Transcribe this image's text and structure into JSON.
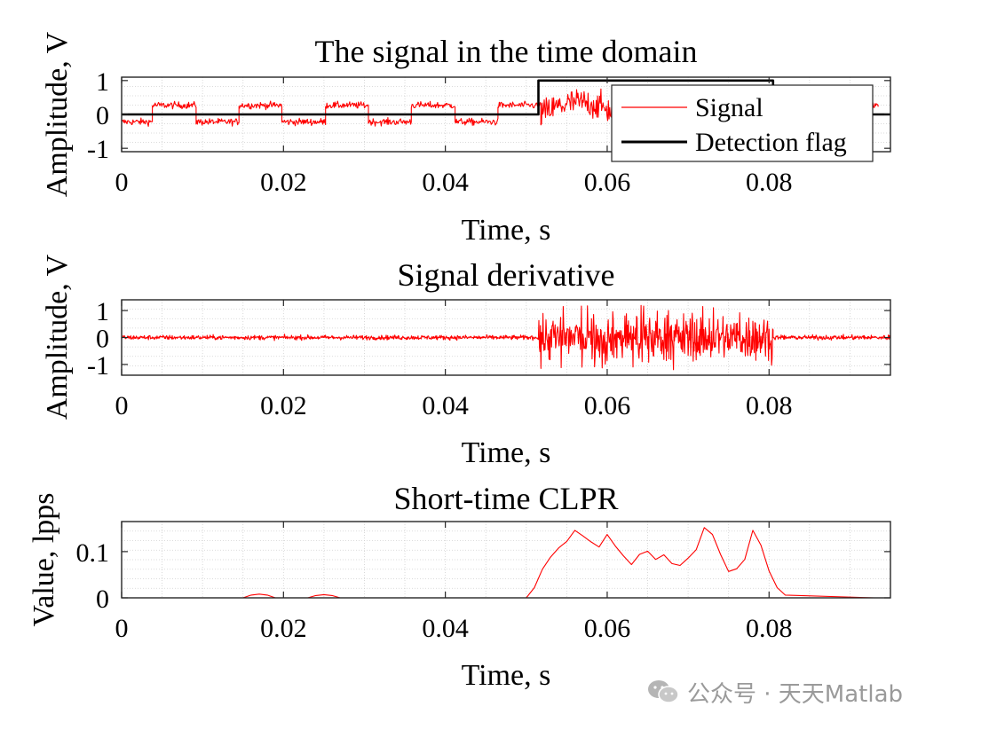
{
  "watermark": {
    "text": "公众号 · 天天Matlab",
    "icon": "wechat-icon"
  },
  "chart_data": [
    {
      "type": "line",
      "title": "The signal in the time domain",
      "xlabel": "Time, s",
      "ylabel": "Amplitude, V",
      "xlim": [
        0,
        0.095
      ],
      "ylim": [
        -1.1,
        1.1
      ],
      "xticks": [
        0,
        0.02,
        0.04,
        0.06,
        0.08
      ],
      "xtick_labels": [
        "0",
        "0.02",
        "0.04",
        "0.06",
        "0.08"
      ],
      "yticks": [
        -1,
        0,
        1
      ],
      "ytick_labels": [
        "-1",
        "0",
        "1"
      ],
      "grid": true,
      "legend": "top-right",
      "series": [
        {
          "name": "Signal",
          "color": "#ff0000",
          "kind": "noisy-square",
          "segments": [
            {
              "x0": 0.0,
              "x1": 0.0038,
              "level": -0.22
            },
            {
              "x0": 0.0038,
              "x1": 0.0092,
              "level": 0.27
            },
            {
              "x0": 0.0092,
              "x1": 0.0145,
              "level": -0.22
            },
            {
              "x0": 0.0145,
              "x1": 0.0198,
              "level": 0.27
            },
            {
              "x0": 0.0198,
              "x1": 0.0252,
              "level": -0.22
            },
            {
              "x0": 0.0252,
              "x1": 0.0305,
              "level": 0.27
            },
            {
              "x0": 0.0305,
              "x1": 0.0358,
              "level": -0.22
            },
            {
              "x0": 0.0358,
              "x1": 0.0412,
              "level": 0.27
            },
            {
              "x0": 0.0412,
              "x1": 0.0465,
              "level": -0.22
            },
            {
              "x0": 0.0465,
              "x1": 0.0518,
              "level": 0.27
            },
            {
              "x0": 0.0518,
              "x1": 0.0805,
              "level": 0.0,
              "noise": 0.6
            },
            {
              "x0": 0.0805,
              "x1": 0.0935,
              "level": 0.27
            }
          ]
        },
        {
          "name": "Detection flag",
          "color": "#000000",
          "x": [
            0,
            0.0515,
            0.0515,
            0.0805,
            0.0805,
            0.095
          ],
          "y": [
            0,
            0,
            1,
            1,
            0,
            0
          ]
        }
      ]
    },
    {
      "type": "line",
      "title": "Signal derivative",
      "xlabel": "Time, s",
      "ylabel": "Amplitude, V",
      "xlim": [
        0,
        0.095
      ],
      "ylim": [
        -1.4,
        1.4
      ],
      "xticks": [
        0,
        0.02,
        0.04,
        0.06,
        0.08
      ],
      "xtick_labels": [
        "0",
        "0.02",
        "0.04",
        "0.06",
        "0.08"
      ],
      "yticks": [
        -1,
        0,
        1
      ],
      "ytick_labels": [
        "-1",
        "0",
        "1"
      ],
      "grid": true,
      "series": [
        {
          "color": "#ff0000",
          "kind": "noise-bursts",
          "segments": [
            {
              "x0": 0.0,
              "x1": 0.0515,
              "amp": 0.12
            },
            {
              "x0": 0.0515,
              "x1": 0.0805,
              "amp": 1.2
            },
            {
              "x0": 0.0805,
              "x1": 0.095,
              "amp": 0.12
            }
          ]
        }
      ]
    },
    {
      "type": "line",
      "title": "Short-time CLPR",
      "xlabel": "Time, s",
      "ylabel": "Value, lpps",
      "xlim": [
        0,
        0.095
      ],
      "ylim": [
        0,
        0.165
      ],
      "xticks": [
        0,
        0.02,
        0.04,
        0.06,
        0.08
      ],
      "xtick_labels": [
        "0",
        "0.02",
        "0.04",
        "0.06",
        "0.08"
      ],
      "yticks": [
        0,
        0.1
      ],
      "ytick_labels": [
        "0",
        "0.1"
      ],
      "grid": true,
      "series": [
        {
          "color": "#ff0000",
          "x": [
            0.001,
            0.015,
            0.016,
            0.017,
            0.018,
            0.019,
            0.023,
            0.024,
            0.025,
            0.026,
            0.027,
            0.05,
            0.051,
            0.052,
            0.053,
            0.054,
            0.055,
            0.056,
            0.057,
            0.058,
            0.059,
            0.06,
            0.061,
            0.062,
            0.063,
            0.064,
            0.065,
            0.066,
            0.067,
            0.068,
            0.069,
            0.07,
            0.071,
            0.072,
            0.073,
            0.074,
            0.075,
            0.076,
            0.077,
            0.078,
            0.079,
            0.08,
            0.081,
            0.082,
            0.093
          ],
          "y": [
            0,
            0,
            0.006,
            0.008,
            0.006,
            0,
            0,
            0.005,
            0.007,
            0.005,
            0,
            0,
            0.022,
            0.062,
            0.088,
            0.108,
            0.122,
            0.146,
            0.134,
            0.121,
            0.11,
            0.137,
            0.112,
            0.091,
            0.072,
            0.094,
            0.101,
            0.083,
            0.093,
            0.074,
            0.07,
            0.086,
            0.104,
            0.152,
            0.137,
            0.094,
            0.057,
            0.063,
            0.083,
            0.146,
            0.114,
            0.058,
            0.022,
            0.006,
            0
          ]
        }
      ]
    }
  ]
}
